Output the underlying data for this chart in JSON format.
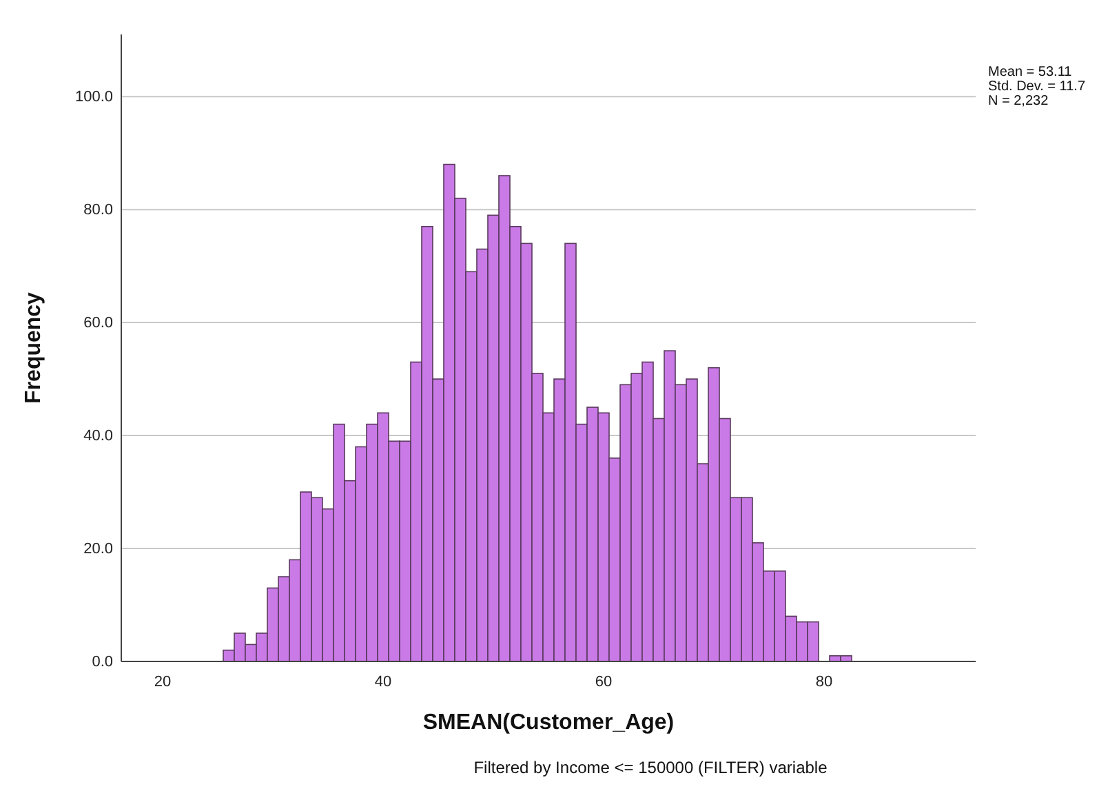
{
  "chart_data": {
    "type": "histogram",
    "xlabel": "SMEAN(Customer_Age)",
    "ylabel": "Frequency",
    "bins": [
      25.5,
      26.5,
      27.5,
      28.5,
      29.5,
      30.5,
      31.5,
      32.5,
      33.5,
      34.5,
      35.5,
      36.5,
      37.5,
      38.5,
      39.5,
      40.5,
      41.5,
      42.5,
      43.5,
      44.5,
      45.5,
      46.5,
      47.5,
      48.5,
      49.5,
      50.5,
      51.5,
      52.5,
      53.5,
      54.5,
      55.5,
      56.5,
      57.5,
      58.5,
      59.5,
      60.5,
      61.5,
      62.5,
      63.5,
      64.5,
      65.5,
      66.5,
      67.5,
      68.5,
      69.5,
      70.5,
      71.5,
      72.5,
      73.5,
      74.5,
      75.5,
      76.5,
      77.5,
      78.5,
      79.5,
      80.5,
      81.5,
      82.5
    ],
    "values": [
      2,
      5,
      3,
      5,
      13,
      15,
      18,
      30,
      29,
      27,
      42,
      32,
      38,
      42,
      44,
      39,
      39,
      53,
      77,
      50,
      88,
      82,
      69,
      73,
      79,
      86,
      77,
      74,
      51,
      44,
      50,
      74,
      42,
      45,
      44,
      36,
      49,
      51,
      53,
      43,
      55,
      49,
      50,
      35,
      52,
      43,
      29,
      29,
      21,
      16,
      16,
      8,
      7,
      7,
      0,
      1,
      1
    ],
    "color": "#c97ae6",
    "xlim": [
      16.25,
      93.75
    ],
    "xticks": [
      20,
      40,
      60,
      80
    ],
    "ylim": [
      0,
      111
    ],
    "yticks": [
      {
        "value": 0,
        "label": "0.0"
      },
      {
        "value": 20,
        "label": "20.0"
      },
      {
        "value": 40,
        "label": "40.0"
      },
      {
        "value": 60,
        "label": "60.0"
      },
      {
        "value": 80,
        "label": "80.0"
      },
      {
        "value": 100,
        "label": "100.0"
      }
    ],
    "grid": "y",
    "annotations": [
      "Mean = 53.11",
      "Std. Dev. = 11.7",
      "N = 2,232",
      "Filtered by Income <= 150000 (FILTER) variable"
    ]
  }
}
